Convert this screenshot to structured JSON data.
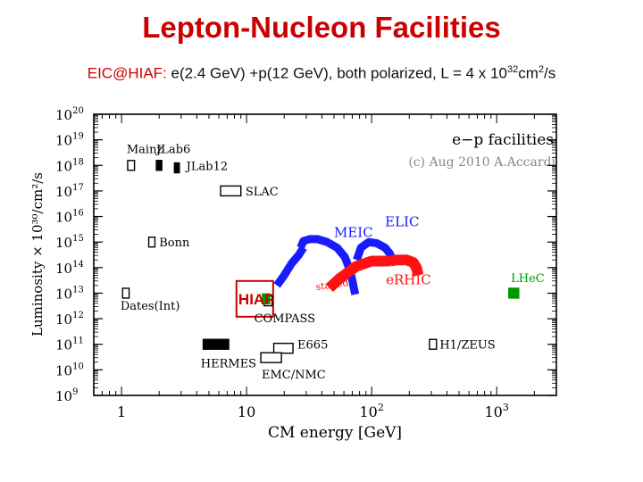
{
  "slide": {
    "title": "Lepton-Nucleon Facilities",
    "subtitle": {
      "prefix": "EIC@HIAF:",
      "text": " e(2.4 GeV) +p(12 GeV), both polarized, L = 4 x 10",
      "exponent": "32",
      "unit": "cm",
      "unit_exp": "2",
      "tail": "/s"
    }
  },
  "chart_data": {
    "type": "scatter",
    "title": "e−p facilities",
    "credit": "(c) Aug 2010 A.Accardi",
    "xlabel": "CM energy [GeV]",
    "ylabel": "Luminosity × 10³⁰/cm²/s",
    "x_scale": "log",
    "y_scale": "log",
    "xlim": [
      0.6,
      3000
    ],
    "ylim": [
      1000000000.0,
      1e+20
    ],
    "x_ticks": [
      {
        "v": 1,
        "label": "1"
      },
      {
        "v": 10,
        "label": "10"
      },
      {
        "v": 100,
        "label": "10",
        "sup": "2"
      },
      {
        "v": 1000,
        "label": "10",
        "sup": "3"
      }
    ],
    "y_ticks": [
      {
        "v": 1e+20,
        "sup": "20"
      },
      {
        "v": 1e+19,
        "sup": "19"
      },
      {
        "v": 1e+18,
        "sup": "18"
      },
      {
        "v": 1e+17,
        "sup": "17"
      },
      {
        "v": 1e+16,
        "sup": "16"
      },
      {
        "v": 1000000000000000.0,
        "sup": "15"
      },
      {
        "v": 100000000000000.0,
        "sup": "14"
      },
      {
        "v": 10000000000000.0,
        "sup": "13"
      },
      {
        "v": 1000000000000.0,
        "sup": "12"
      },
      {
        "v": 100000000000.0,
        "sup": "11"
      },
      {
        "v": 10000000000.0,
        "sup": "10"
      },
      {
        "v": 1000000000.0,
        "sup": "9"
      }
    ],
    "facilities": [
      {
        "name": "Mainz",
        "x": [
          1.12,
          1.27
        ],
        "y": 1e+18,
        "filled": false,
        "color": "#000000",
        "label_x": 1.1,
        "label_y": 4.5e+18
      },
      {
        "name": "JLab6",
        "x": [
          1.9,
          2.1
        ],
        "y": 1e+18,
        "filled": true,
        "color": "#000000",
        "label_x": 1.9,
        "label_y": 4.5e+18
      },
      {
        "name": "JLab12",
        "x": [
          2.65,
          2.9
        ],
        "y": 8e+17,
        "filled": true,
        "color": "#000000",
        "label_x": 3.3,
        "label_y": 1e+18
      },
      {
        "name": "SLAC",
        "x": [
          6.2,
          9.0
        ],
        "y": 1e+17,
        "filled": false,
        "color": "#000000",
        "label_x": 9.8,
        "label_y": 1e+17
      },
      {
        "name": "Bonn",
        "x": [
          1.65,
          1.85
        ],
        "y": 1000000000000000.0,
        "filled": false,
        "color": "#000000",
        "label_x": 2.0,
        "label_y": 1000000000000000.0
      },
      {
        "name": "Dates(Int)",
        "x": [
          1.02,
          1.15
        ],
        "y": 10000000000000.0,
        "filled": false,
        "color": "#000000",
        "label_x": 0.98,
        "label_y": 3300000000000.0
      },
      {
        "name": "COMPASS",
        "x": [
          13.8,
          16.0
        ],
        "y": 5000000000000.0,
        "filled": false,
        "color": "#000000",
        "label_x": 11.5,
        "label_y": 1100000000000.0
      },
      {
        "name": "HERMES",
        "x": [
          4.5,
          7.2
        ],
        "y": 100000000000.0,
        "filled": true,
        "color": "#000000",
        "label_x": 4.3,
        "label_y": 19000000000.0
      },
      {
        "name": "E665",
        "x": [
          16.5,
          23.5
        ],
        "y": 70000000000.0,
        "filled": false,
        "color": "#000000",
        "label_x": 25.5,
        "label_y": 100000000000.0
      },
      {
        "name": "EMC/NMC",
        "x": [
          13.0,
          19.0
        ],
        "y": 30000000000.0,
        "filled": false,
        "color": "#000000",
        "label_x": 13.2,
        "label_y": 7000000000.0
      },
      {
        "name": "H1/ZEUS",
        "x": [
          290,
          330
        ],
        "y": 100000000000.0,
        "filled": false,
        "color": "#000000",
        "label_x": 350,
        "label_y": 100000000000.0
      },
      {
        "name": "LHeC",
        "x": [
          1250,
          1500
        ],
        "y": 10000000000000.0,
        "filled": true,
        "color": "#009900",
        "label_x": 1300,
        "label_y": 40000000000000.0
      },
      {
        "name": "HIAF",
        "x": [
          13.4,
          15.3
        ],
        "y": 6000000000000.0,
        "filled": true,
        "color": "#009900",
        "label_x": 8.6,
        "label_y": 5500000000000.0
      }
    ],
    "series": [
      {
        "name": "MEIC",
        "color": "#1a1aff",
        "x": [
          27,
          28.5,
          32,
          37,
          44,
          53,
          61,
          67,
          70,
          72,
          74
        ],
        "y": [
          600000000000000.0,
          1100000000000000.0,
          1300000000000000.0,
          1300000000000000.0,
          1000000000000000.0,
          600000000000000.0,
          260000000000000.0,
          80000000000000.0,
          32000000000000.0,
          16000000000000.0,
          9000000000000.0
        ],
        "label_x": 50,
        "label_y": 1600000000000000.0
      },
      {
        "name": "MEIC low",
        "color": "#1a1aff",
        "x": [
          17.5,
          20,
          23,
          26,
          28.5
        ],
        "y": [
          20000000000000.0,
          50000000000000.0,
          150000000000000.0,
          300000000000000.0,
          600000000000000.0
        ]
      },
      {
        "name": "ELIC",
        "color": "#1a1aff",
        "x": [
          76,
          82,
          95,
          110,
          128,
          140,
          146,
          150
        ],
        "y": [
          200000000000000.0,
          600000000000000.0,
          1000000000000000.0,
          900000000000000.0,
          600000000000000.0,
          350000000000000.0,
          210000000000000.0,
          140000000000000.0
        ],
        "label_x": 128,
        "label_y": 4200000000000000.0
      },
      {
        "name": "eRHIC",
        "color": "#ff1111",
        "x": [
          140,
          160,
          190,
          215,
          228,
          236
        ],
        "y": [
          180000000000000.0,
          200000000000000.0,
          200000000000000.0,
          160000000000000.0,
          100000000000000.0,
          50000000000000.0
        ],
        "label_x": 130,
        "label_y": 22000000000000.0
      },
      {
        "name": "staged",
        "color": "#ff1111",
        "x": [
          46,
          55,
          75,
          100,
          140
        ],
        "y": [
          16000000000000.0,
          36000000000000.0,
          110000000000000.0,
          180000000000000.0,
          180000000000000.0
        ],
        "label_x": 36,
        "label_y": 13000000000000.0
      }
    ],
    "hiaf_box": {
      "x": [
        8.3,
        16.3
      ],
      "y": [
        1200000000000.0,
        30000000000000.0
      ]
    }
  }
}
